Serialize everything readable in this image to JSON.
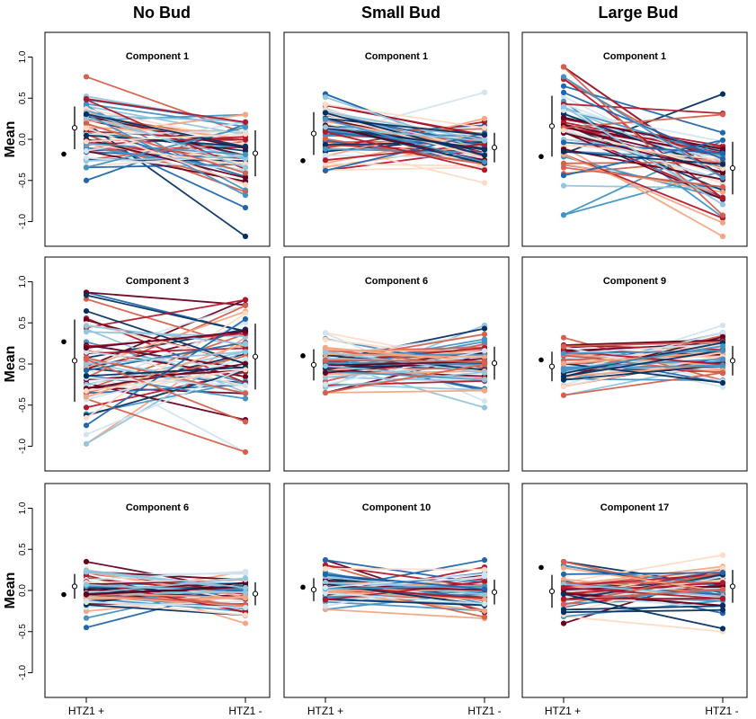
{
  "figure": {
    "column_titles": [
      "No Bud",
      "Small Bud",
      "Large Bud"
    ],
    "y_axis_label": "Mean",
    "y_ticks": [
      "1.0",
      "0.5",
      "0.0",
      "-0.5",
      "-1.0"
    ],
    "x_tick_labels": [
      "HTZ1 +",
      "HTZ1 -"
    ]
  },
  "colors": {
    "palette": [
      "#67001f",
      "#b2182b",
      "#d6604d",
      "#f4a582",
      "#fddbc7",
      "#d1e5f0",
      "#92c5de",
      "#4393c3",
      "#2166ac",
      "#053061"
    ],
    "frame": "#000000"
  },
  "chart_data": [
    {
      "type": "line",
      "column": "No Bud",
      "title": "Component 1",
      "ylim": [
        -1.3,
        1.3
      ],
      "x": [
        "HTZ1 +",
        "HTZ1 -"
      ],
      "lines_count": 60,
      "plus_range": [
        -0.5,
        0.76
      ],
      "minus_range": [
        -1.18,
        0.3
      ],
      "extra_point": -0.18,
      "plus_summary": {
        "mean": 0.14,
        "sd": 0.26
      },
      "minus_summary": {
        "mean": -0.17,
        "sd": 0.28
      }
    },
    {
      "type": "line",
      "column": "Small Bud",
      "title": "Component 1",
      "ylim": [
        -1.3,
        1.3
      ],
      "x": [
        "HTZ1 +",
        "HTZ1 -"
      ],
      "lines_count": 60,
      "plus_range": [
        -0.38,
        0.55
      ],
      "minus_range": [
        -0.53,
        0.57
      ],
      "extra_point": -0.26,
      "plus_summary": {
        "mean": 0.07,
        "sd": 0.26
      },
      "minus_summary": {
        "mean": -0.1,
        "sd": 0.18
      }
    },
    {
      "type": "line",
      "column": "Large Bud",
      "title": "Component 1",
      "ylim": [
        -1.3,
        1.3
      ],
      "x": [
        "HTZ1 +",
        "HTZ1 -"
      ],
      "lines_count": 60,
      "plus_range": [
        -0.92,
        0.88
      ],
      "minus_range": [
        -1.18,
        0.55
      ],
      "extra_point": -0.21,
      "plus_summary": {
        "mean": 0.16,
        "sd": 0.37
      },
      "minus_summary": {
        "mean": -0.35,
        "sd": 0.32
      }
    },
    {
      "type": "line",
      "column": "No Bud",
      "title": "Component 3",
      "ylim": [
        -1.3,
        1.3
      ],
      "x": [
        "HTZ1 +",
        "HTZ1 -"
      ],
      "lines_count": 60,
      "plus_range": [
        -0.97,
        0.87
      ],
      "minus_range": [
        -1.07,
        0.78
      ],
      "extra_point": 0.27,
      "plus_summary": {
        "mean": 0.04,
        "sd": 0.5
      },
      "minus_summary": {
        "mean": 0.09,
        "sd": 0.4
      }
    },
    {
      "type": "line",
      "column": "Small Bud",
      "title": "Component 6",
      "ylim": [
        -1.3,
        1.3
      ],
      "x": [
        "HTZ1 +",
        "HTZ1 -"
      ],
      "lines_count": 60,
      "plus_range": [
        -0.35,
        0.38
      ],
      "minus_range": [
        -0.53,
        0.47
      ],
      "extra_point": 0.1,
      "plus_summary": {
        "mean": -0.01,
        "sd": 0.19
      },
      "minus_summary": {
        "mean": 0.01,
        "sd": 0.2
      }
    },
    {
      "type": "line",
      "column": "Large Bud",
      "title": "Component 9",
      "ylim": [
        -1.3,
        1.3
      ],
      "x": [
        "HTZ1 +",
        "HTZ1 -"
      ],
      "lines_count": 60,
      "plus_range": [
        -0.38,
        0.32
      ],
      "minus_range": [
        -0.28,
        0.47
      ],
      "extra_point": 0.05,
      "plus_summary": {
        "mean": -0.03,
        "sd": 0.18
      },
      "minus_summary": {
        "mean": 0.04,
        "sd": 0.18
      }
    },
    {
      "type": "line",
      "column": "No Bud",
      "title": "Component 6",
      "ylim": [
        -1.3,
        1.3
      ],
      "x": [
        "HTZ1 +",
        "HTZ1 -"
      ],
      "lines_count": 60,
      "plus_range": [
        -0.45,
        0.35
      ],
      "minus_range": [
        -0.4,
        0.23
      ],
      "extra_point": -0.05,
      "plus_summary": {
        "mean": 0.05,
        "sd": 0.15
      },
      "minus_summary": {
        "mean": -0.04,
        "sd": 0.14
      }
    },
    {
      "type": "line",
      "column": "Small Bud",
      "title": "Component 10",
      "ylim": [
        -1.3,
        1.3
      ],
      "x": [
        "HTZ1 +",
        "HTZ1 -"
      ],
      "lines_count": 60,
      "plus_range": [
        -0.23,
        0.37
      ],
      "minus_range": [
        -0.34,
        0.37
      ],
      "extra_point": 0.04,
      "plus_summary": {
        "mean": 0.01,
        "sd": 0.14
      },
      "minus_summary": {
        "mean": -0.02,
        "sd": 0.15
      }
    },
    {
      "type": "line",
      "column": "Large Bud",
      "title": "Component 17",
      "ylim": [
        -1.3,
        1.3
      ],
      "x": [
        "HTZ1 +",
        "HTZ1 -"
      ],
      "lines_count": 60,
      "plus_range": [
        -0.4,
        0.35
      ],
      "minus_range": [
        -0.5,
        0.43
      ],
      "extra_point": 0.28,
      "plus_summary": {
        "mean": -0.01,
        "sd": 0.2
      },
      "minus_summary": {
        "mean": 0.05,
        "sd": 0.2
      }
    }
  ]
}
